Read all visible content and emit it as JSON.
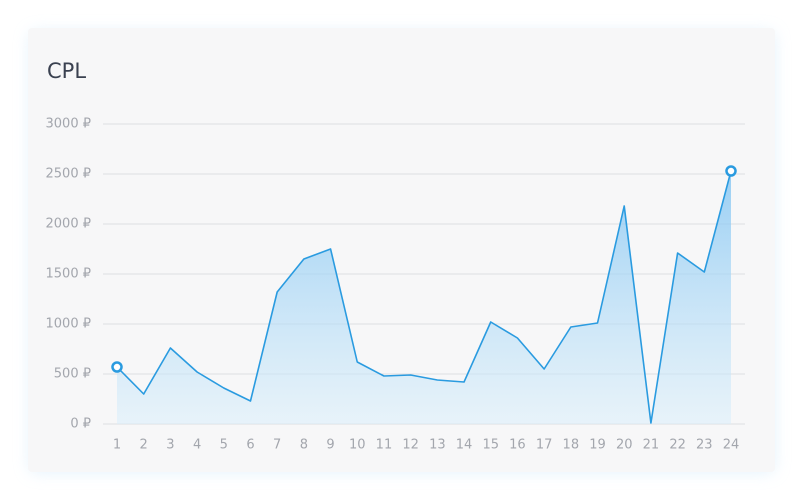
{
  "chart_data": {
    "type": "area",
    "title": "CPL",
    "x": [
      1,
      2,
      3,
      4,
      5,
      6,
      7,
      8,
      9,
      10,
      11,
      12,
      13,
      14,
      15,
      16,
      17,
      18,
      19,
      20,
      21,
      22,
      23,
      24
    ],
    "series": [
      {
        "color": "#2a9be0",
        "values": [
          570,
          300,
          760,
          520,
          360,
          230,
          1320,
          1650,
          1750,
          620,
          480,
          490,
          440,
          420,
          1020,
          860,
          550,
          970,
          1010,
          2180,
          10,
          1710,
          1520,
          2530
        ]
      }
    ],
    "xlim": [
      1,
      24
    ],
    "xticks": [
      1,
      2,
      3,
      4,
      5,
      6,
      7,
      8,
      9,
      10,
      11,
      12,
      13,
      14,
      15,
      16,
      17,
      18,
      19,
      20,
      21,
      22,
      23,
      24
    ],
    "ylim": [
      0,
      3000
    ],
    "yticks": [
      {
        "value": 0,
        "label": "0 ₽"
      },
      {
        "value": 500,
        "label": "500 ₽"
      },
      {
        "value": 1000,
        "label": "1000 ₽"
      },
      {
        "value": 1500,
        "label": "1500 ₽"
      },
      {
        "value": 2000,
        "label": "2000 ₽"
      },
      {
        "value": 2500,
        "label": "2500 ₽"
      },
      {
        "value": 3000,
        "label": "3000 ₽"
      }
    ],
    "grid": true
  }
}
